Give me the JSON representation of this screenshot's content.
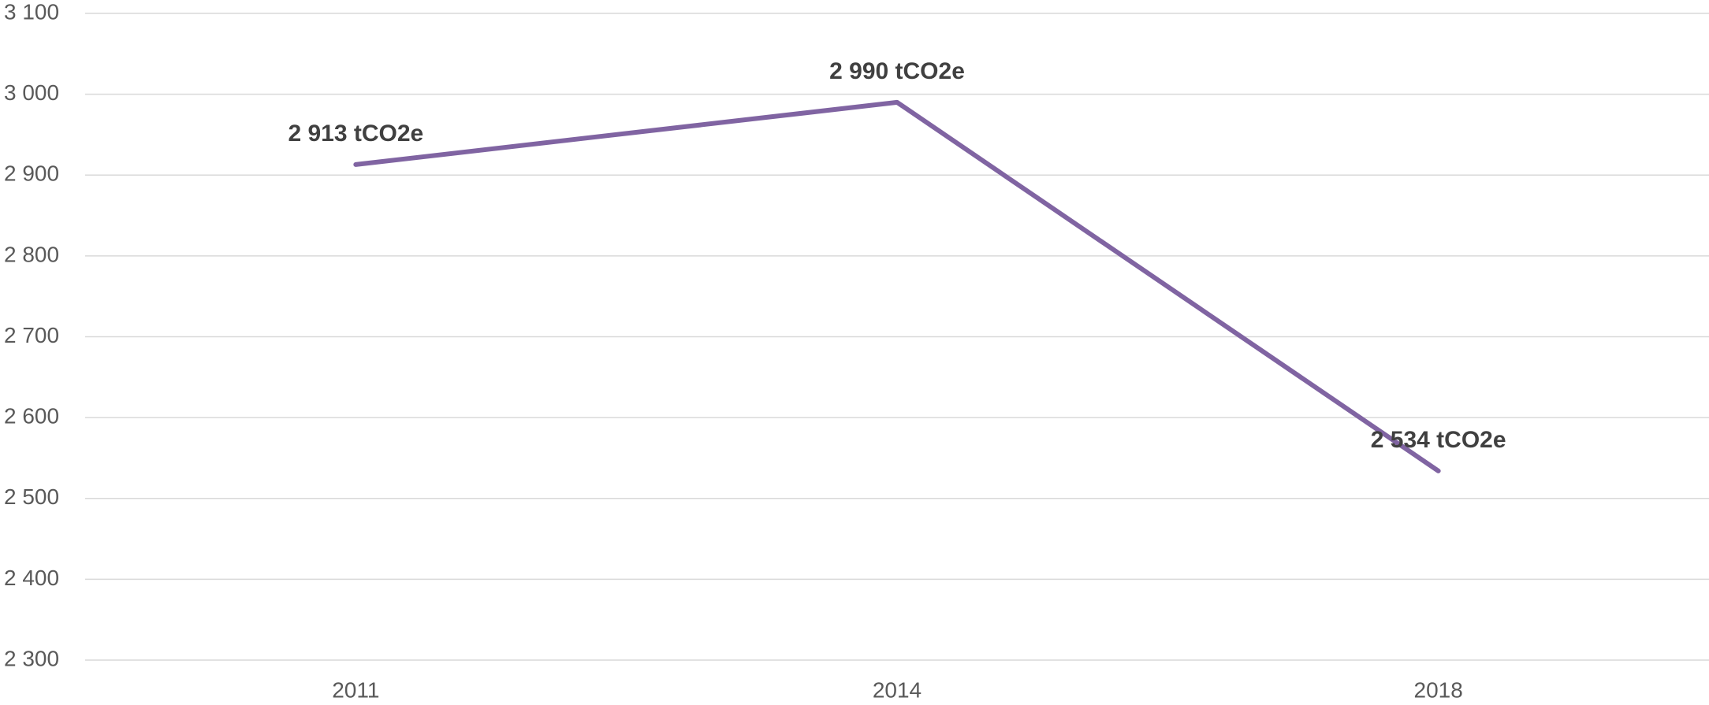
{
  "chart_data": {
    "type": "line",
    "categories": [
      "2011",
      "2014",
      "2018"
    ],
    "series": [
      {
        "name": null,
        "color": "#8064a2",
        "values": [
          2913,
          2990,
          2534
        ],
        "value_labels": [
          "2 913 tCO2e",
          "2 990 tCO2e",
          "2 534 tCO2e"
        ]
      }
    ],
    "ylim": [
      2300,
      3100
    ],
    "yticks": [
      {
        "value": 2300,
        "label": "2 300"
      },
      {
        "value": 2400,
        "label": "2 400"
      },
      {
        "value": 2500,
        "label": "2 500"
      },
      {
        "value": 2600,
        "label": "2 600"
      },
      {
        "value": 2700,
        "label": "2 700"
      },
      {
        "value": 2800,
        "label": "2 800"
      },
      {
        "value": 2900,
        "label": "2 900"
      },
      {
        "value": 3000,
        "label": "3 000"
      },
      {
        "value": 3100,
        "label": "3 100"
      }
    ],
    "grid": true
  }
}
